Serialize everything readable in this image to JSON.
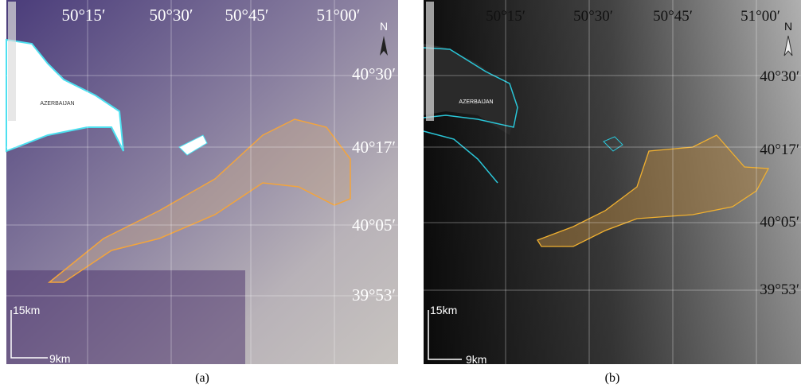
{
  "panels": [
    {
      "lon_labels": [
        "50°15′",
        "50°30′",
        "50°45′",
        "51°00′"
      ],
      "lat_labels": [
        "40°30′",
        "40°17′",
        "40°05′",
        "39°53′"
      ],
      "north": "N",
      "country": "AZERBAIJAN",
      "scale_vertical": "15km",
      "scale_horizontal": "9km",
      "caption": "(a)"
    },
    {
      "lon_labels": [
        "50°15′",
        "50°30′",
        "50°45′",
        "51°00′"
      ],
      "lat_labels": [
        "40°30′",
        "40°17′",
        "40°05′",
        "39°53′"
      ],
      "north": "N",
      "country": "AZERBAIJAN",
      "scale_vertical": "15km",
      "scale_horizontal": "9km",
      "caption": "(b)"
    }
  ]
}
